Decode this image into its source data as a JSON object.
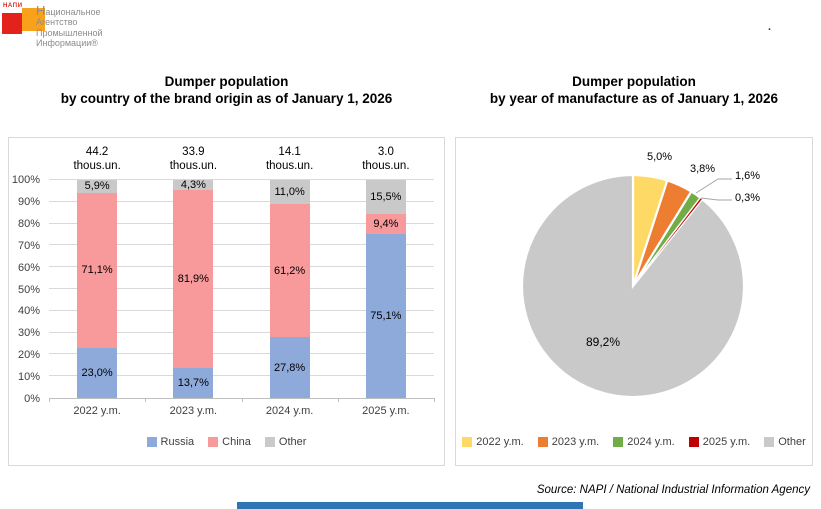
{
  "logo": {
    "abbr": "НАПИ",
    "name_lines": [
      "Национальное",
      "Агентство",
      "Промышленной",
      "Информации®"
    ],
    "red_color": "#E3231B",
    "orange_color": "#F9A11B"
  },
  "header": {
    "top_right_mark": "."
  },
  "footer": {
    "source_note": "Source: NAPI / National Industrial Information Agency",
    "bottom_bar_color": "#2E75B6"
  },
  "chart_data": [
    {
      "type": "bar",
      "stacked": true,
      "title_line1": "Dumper population",
      "title_line2": "by country of the brand origin as of January 1, 2026",
      "categories": [
        "2022 y.m.",
        "2023 y.m.",
        "2024 y.m.",
        "2025 y.m."
      ],
      "totals": [
        {
          "value": "44.2",
          "unit": "thous.un."
        },
        {
          "value": "33.9",
          "unit": "thous.un."
        },
        {
          "value": "14.1",
          "unit": "thous.un."
        },
        {
          "value": "3.0",
          "unit": "thous.un."
        }
      ],
      "series": [
        {
          "name": "Russia",
          "color": "#8EAADB",
          "values": [
            23.0,
            13.7,
            27.8,
            75.1
          ],
          "labels": [
            "23,0%",
            "13,7%",
            "27,8%",
            "75,1%"
          ]
        },
        {
          "name": "China",
          "color": "#F8999B",
          "values": [
            71.1,
            81.9,
            61.2,
            9.4
          ],
          "labels": [
            "71,1%",
            "81,9%",
            "61,2%",
            "9,4%"
          ]
        },
        {
          "name": "Other",
          "color": "#C9C9C9",
          "values": [
            5.9,
            4.3,
            11.0,
            15.5
          ],
          "labels": [
            "5,9%",
            "4,3%",
            "11,0%",
            "15,5%"
          ]
        }
      ],
      "y_axis": {
        "min": 0,
        "max": 100,
        "ticks": [
          "0%",
          "10%",
          "20%",
          "30%",
          "40%",
          "50%",
          "60%",
          "70%",
          "80%",
          "90%",
          "100%"
        ]
      },
      "grid": true,
      "legend_position": "bottom"
    },
    {
      "type": "pie",
      "title_line1": "Dumper population",
      "title_line2": "by year of manufacture as of January 1, 2026",
      "start_angle_deg": -90,
      "direction": "clockwise",
      "slices": [
        {
          "name": "2022 y.m.",
          "value": 5.0,
          "label": "5,0%",
          "color": "#FFD966"
        },
        {
          "name": "2023 y.m.",
          "value": 3.8,
          "label": "3,8%",
          "color": "#ED7D31"
        },
        {
          "name": "2024 y.m.",
          "value": 1.6,
          "label": "1,6%",
          "color": "#70AD47"
        },
        {
          "name": "2025 y.m.",
          "value": 0.3,
          "label": "0,3%",
          "color": "#C00000"
        },
        {
          "name": "Other",
          "value": 89.2,
          "label": "89,2%",
          "color": "#C9C9C9"
        }
      ],
      "legend_position": "bottom"
    }
  ]
}
